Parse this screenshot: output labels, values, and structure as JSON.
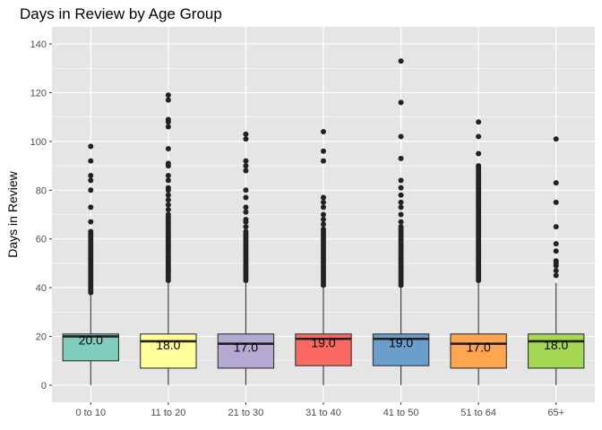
{
  "chart_data": {
    "type": "boxplot",
    "title": "Days in Review by Age Group",
    "xlabel": "",
    "ylabel": "Days in Review",
    "ylim": [
      -7,
      147
    ],
    "yticks": [
      0,
      20,
      40,
      60,
      80,
      100,
      120,
      140
    ],
    "grid": true,
    "legend": "none",
    "panel_background": "#e5e5e5",
    "grid_color": "#ffffff",
    "series": [
      {
        "category": "0 to 10",
        "color": "#7fcdbb",
        "whisker_low": 0,
        "q1": 10,
        "median": 20,
        "q3": 21,
        "whisker_high": 37,
        "median_label": "20.0",
        "outliers": [
          38,
          39,
          40,
          41,
          42,
          43,
          44,
          45,
          46,
          47,
          48,
          49,
          50,
          51,
          52,
          53,
          54,
          55,
          56,
          57,
          58,
          59,
          60,
          61,
          62,
          63,
          67,
          73,
          80,
          84,
          86,
          92,
          98
        ]
      },
      {
        "category": "11 to 20",
        "color": "#ffff99",
        "whisker_low": 0,
        "q1": 7,
        "median": 18,
        "q3": 21,
        "whisker_high": 42,
        "median_label": "18.0",
        "outliers": [
          43,
          44,
          45,
          46,
          47,
          48,
          49,
          50,
          51,
          52,
          53,
          54,
          55,
          56,
          57,
          58,
          59,
          60,
          61,
          62,
          63,
          64,
          65,
          66,
          67,
          68,
          69,
          70,
          72,
          74,
          76,
          78,
          80,
          81,
          84,
          86,
          90,
          91,
          97,
          106,
          108,
          109,
          117,
          119
        ]
      },
      {
        "category": "21 to 30",
        "color": "#b3a9d3",
        "whisker_low": 0,
        "q1": 7,
        "median": 17,
        "q3": 21,
        "whisker_high": 42,
        "median_label": "17.0",
        "outliers": [
          43,
          44,
          45,
          46,
          47,
          48,
          49,
          50,
          51,
          52,
          53,
          54,
          55,
          56,
          57,
          58,
          59,
          60,
          61,
          62,
          63,
          65,
          67,
          68,
          71,
          73,
          77,
          80,
          88,
          90,
          92,
          101,
          103
        ]
      },
      {
        "category": "31 to 40",
        "color": "#fb6a62",
        "whisker_low": 0,
        "q1": 8,
        "median": 19,
        "q3": 21,
        "whisker_high": 40,
        "median_label": "19.0",
        "outliers": [
          41,
          42,
          43,
          44,
          45,
          46,
          47,
          48,
          49,
          50,
          51,
          52,
          53,
          54,
          55,
          56,
          57,
          58,
          59,
          60,
          61,
          62,
          63,
          64,
          66,
          68,
          70,
          73,
          75,
          77,
          92,
          96,
          104
        ]
      },
      {
        "category": "41 to 50",
        "color": "#6a9fcb",
        "whisker_low": 0,
        "q1": 8,
        "median": 19,
        "q3": 21,
        "whisker_high": 40,
        "median_label": "19.0",
        "outliers": [
          41,
          42,
          43,
          44,
          45,
          46,
          47,
          48,
          49,
          50,
          51,
          52,
          53,
          54,
          55,
          56,
          57,
          58,
          59,
          60,
          61,
          62,
          63,
          64,
          65,
          67,
          70,
          73,
          75,
          78,
          81,
          84,
          93,
          102,
          116,
          133
        ]
      },
      {
        "category": "51 to 64",
        "color": "#fda54f",
        "whisker_low": 0,
        "q1": 7,
        "median": 17,
        "q3": 21,
        "whisker_high": 42,
        "median_label": "17.0",
        "outliers": [
          43,
          44,
          45,
          46,
          47,
          48,
          49,
          50,
          51,
          52,
          53,
          54,
          55,
          56,
          57,
          58,
          59,
          60,
          61,
          62,
          63,
          64,
          65,
          66,
          67,
          68,
          69,
          70,
          71,
          72,
          73,
          74,
          75,
          76,
          77,
          78,
          79,
          80,
          81,
          82,
          83,
          84,
          85,
          86,
          87,
          88,
          89,
          90,
          95,
          102,
          108
        ]
      },
      {
        "category": "65+",
        "color": "#a6d854",
        "whisker_low": 0,
        "q1": 7,
        "median": 18,
        "q3": 21,
        "whisker_high": 42,
        "median_label": "18.0",
        "outliers": [
          45,
          47,
          49,
          50,
          51,
          55,
          58,
          65,
          75,
          83,
          101
        ]
      }
    ]
  }
}
